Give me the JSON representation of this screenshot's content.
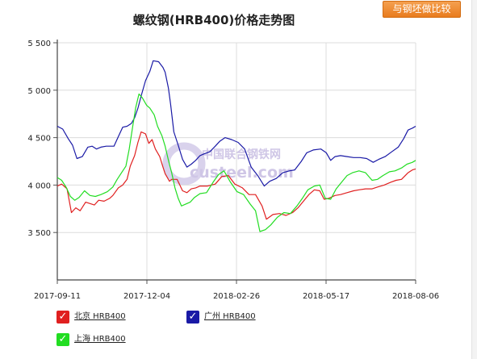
{
  "header": {
    "compare_button_label": "与钢坯做比较"
  },
  "watermark": {
    "line1": "中国联合钢铁网",
    "line2": "custeel.com"
  },
  "legend": [
    {
      "label": "北京 HRB400",
      "color": "#e02020"
    },
    {
      "label": "广州 HRB400",
      "color": "#1a1aa6"
    },
    {
      "label": "上海 HRB400",
      "color": "#22dd22"
    }
  ],
  "chart_data": {
    "type": "line",
    "title": "螺纹钢(HRB400)价格走势图",
    "xlabel": "",
    "ylabel": "",
    "x_ticks": [
      "2017-09-11",
      "2017-12-04",
      "2018-02-26",
      "2018-05-17",
      "2018-08-06"
    ],
    "y_ticks": [
      "3 500",
      "4 000",
      "4 500",
      "5 000",
      "5 500"
    ],
    "ylim": [
      3000,
      5500
    ],
    "grid": true,
    "legend_position": "bottom",
    "x_range_days": 329,
    "series": [
      {
        "name": "北京 HRB400",
        "color": "#e02020",
        "points": [
          [
            0,
            3990
          ],
          [
            4,
            4010
          ],
          [
            9,
            3960
          ],
          [
            13,
            3710
          ],
          [
            17,
            3760
          ],
          [
            21,
            3730
          ],
          [
            26,
            3820
          ],
          [
            34,
            3790
          ],
          [
            38,
            3840
          ],
          [
            43,
            3830
          ],
          [
            48,
            3860
          ],
          [
            51,
            3890
          ],
          [
            56,
            3970
          ],
          [
            60,
            4000
          ],
          [
            64,
            4060
          ],
          [
            67,
            4200
          ],
          [
            71,
            4310
          ],
          [
            74,
            4450
          ],
          [
            77,
            4560
          ],
          [
            81,
            4540
          ],
          [
            84,
            4440
          ],
          [
            87,
            4480
          ],
          [
            90,
            4380
          ],
          [
            94,
            4300
          ],
          [
            97,
            4190
          ],
          [
            99,
            4120
          ],
          [
            103,
            4040
          ],
          [
            105,
            4060
          ],
          [
            110,
            4060
          ],
          [
            115,
            3940
          ],
          [
            119,
            3920
          ],
          [
            123,
            3960
          ],
          [
            127,
            3970
          ],
          [
            131,
            3990
          ],
          [
            138,
            3990
          ],
          [
            145,
            4010
          ],
          [
            151,
            4090
          ],
          [
            157,
            4100
          ],
          [
            163,
            4010
          ],
          [
            170,
            3970
          ],
          [
            176,
            3900
          ],
          [
            182,
            3900
          ],
          [
            188,
            3780
          ],
          [
            192,
            3640
          ],
          [
            198,
            3690
          ],
          [
            204,
            3700
          ],
          [
            210,
            3680
          ],
          [
            216,
            3710
          ],
          [
            221,
            3760
          ],
          [
            226,
            3830
          ],
          [
            231,
            3900
          ],
          [
            236,
            3950
          ],
          [
            241,
            3940
          ],
          [
            245,
            3850
          ],
          [
            249,
            3860
          ],
          [
            255,
            3890
          ],
          [
            260,
            3900
          ],
          [
            266,
            3920
          ],
          [
            272,
            3940
          ],
          [
            277,
            3950
          ],
          [
            283,
            3960
          ],
          [
            289,
            3960
          ],
          [
            294,
            3980
          ],
          [
            300,
            4000
          ],
          [
            306,
            4030
          ],
          [
            311,
            4050
          ],
          [
            316,
            4060
          ],
          [
            322,
            4130
          ],
          [
            326,
            4160
          ],
          [
            329,
            4170
          ]
        ]
      },
      {
        "name": "广州 HRB400",
        "color": "#1a1aa6",
        "points": [
          [
            0,
            4620
          ],
          [
            5,
            4590
          ],
          [
            10,
            4490
          ],
          [
            14,
            4420
          ],
          [
            18,
            4280
          ],
          [
            23,
            4300
          ],
          [
            28,
            4400
          ],
          [
            32,
            4410
          ],
          [
            36,
            4380
          ],
          [
            40,
            4400
          ],
          [
            45,
            4410
          ],
          [
            52,
            4410
          ],
          [
            56,
            4510
          ],
          [
            60,
            4610
          ],
          [
            64,
            4620
          ],
          [
            68,
            4650
          ],
          [
            71,
            4710
          ],
          [
            74,
            4810
          ],
          [
            77,
            4940
          ],
          [
            81,
            5100
          ],
          [
            85,
            5200
          ],
          [
            88,
            5310
          ],
          [
            93,
            5300
          ],
          [
            97,
            5240
          ],
          [
            99,
            5190
          ],
          [
            102,
            5020
          ],
          [
            104,
            4850
          ],
          [
            107,
            4560
          ],
          [
            111,
            4420
          ],
          [
            115,
            4270
          ],
          [
            119,
            4190
          ],
          [
            123,
            4220
          ],
          [
            127,
            4260
          ],
          [
            131,
            4310
          ],
          [
            135,
            4330
          ],
          [
            140,
            4350
          ],
          [
            145,
            4410
          ],
          [
            149,
            4460
          ],
          [
            154,
            4500
          ],
          [
            160,
            4480
          ],
          [
            166,
            4450
          ],
          [
            172,
            4380
          ],
          [
            178,
            4190
          ],
          [
            184,
            4100
          ],
          [
            190,
            3990
          ],
          [
            195,
            4040
          ],
          [
            201,
            4070
          ],
          [
            207,
            4130
          ],
          [
            213,
            4150
          ],
          [
            218,
            4160
          ],
          [
            224,
            4250
          ],
          [
            229,
            4340
          ],
          [
            235,
            4370
          ],
          [
            242,
            4380
          ],
          [
            247,
            4340
          ],
          [
            251,
            4260
          ],
          [
            255,
            4300
          ],
          [
            260,
            4310
          ],
          [
            266,
            4300
          ],
          [
            272,
            4290
          ],
          [
            278,
            4290
          ],
          [
            284,
            4280
          ],
          [
            290,
            4240
          ],
          [
            295,
            4270
          ],
          [
            301,
            4300
          ],
          [
            307,
            4350
          ],
          [
            313,
            4400
          ],
          [
            318,
            4490
          ],
          [
            322,
            4580
          ],
          [
            326,
            4600
          ],
          [
            329,
            4620
          ]
        ]
      },
      {
        "name": "上海 HRB400",
        "color": "#22dd22",
        "points": [
          [
            0,
            4080
          ],
          [
            4,
            4050
          ],
          [
            8,
            3980
          ],
          [
            12,
            3880
          ],
          [
            16,
            3840
          ],
          [
            20,
            3870
          ],
          [
            25,
            3940
          ],
          [
            30,
            3890
          ],
          [
            35,
            3880
          ],
          [
            40,
            3900
          ],
          [
            46,
            3930
          ],
          [
            51,
            3980
          ],
          [
            55,
            4060
          ],
          [
            59,
            4130
          ],
          [
            63,
            4200
          ],
          [
            66,
            4380
          ],
          [
            69,
            4600
          ],
          [
            72,
            4820
          ],
          [
            75,
            4960
          ],
          [
            78,
            4920
          ],
          [
            82,
            4840
          ],
          [
            85,
            4810
          ],
          [
            89,
            4740
          ],
          [
            92,
            4620
          ],
          [
            96,
            4520
          ],
          [
            99,
            4410
          ],
          [
            102,
            4260
          ],
          [
            105,
            4130
          ],
          [
            108,
            3970
          ],
          [
            111,
            3860
          ],
          [
            114,
            3780
          ],
          [
            118,
            3800
          ],
          [
            122,
            3820
          ],
          [
            126,
            3870
          ],
          [
            131,
            3910
          ],
          [
            137,
            3920
          ],
          [
            143,
            4030
          ],
          [
            148,
            4110
          ],
          [
            153,
            4150
          ],
          [
            159,
            4030
          ],
          [
            165,
            3930
          ],
          [
            171,
            3900
          ],
          [
            177,
            3800
          ],
          [
            182,
            3730
          ],
          [
            186,
            3510
          ],
          [
            191,
            3530
          ],
          [
            196,
            3580
          ],
          [
            202,
            3660
          ],
          [
            208,
            3710
          ],
          [
            214,
            3700
          ],
          [
            220,
            3780
          ],
          [
            225,
            3860
          ],
          [
            230,
            3950
          ],
          [
            236,
            3990
          ],
          [
            241,
            4000
          ],
          [
            246,
            3860
          ],
          [
            251,
            3850
          ],
          [
            256,
            3960
          ],
          [
            261,
            4030
          ],
          [
            266,
            4100
          ],
          [
            271,
            4130
          ],
          [
            277,
            4150
          ],
          [
            283,
            4130
          ],
          [
            289,
            4050
          ],
          [
            294,
            4060
          ],
          [
            299,
            4100
          ],
          [
            305,
            4140
          ],
          [
            310,
            4150
          ],
          [
            316,
            4180
          ],
          [
            321,
            4220
          ],
          [
            326,
            4240
          ],
          [
            329,
            4260
          ]
        ]
      }
    ]
  }
}
